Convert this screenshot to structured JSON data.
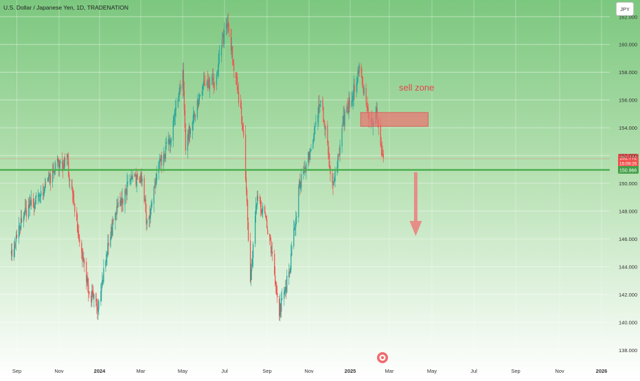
{
  "header": {
    "title": "U.S. Dollar / Japanese Yen, 1D, TRADENATION",
    "currency_button": "JPY"
  },
  "price_labels": {
    "current_price": "151.772",
    "countdown": "15:09:25",
    "line_price": "150.966"
  },
  "annotation": {
    "sell_zone_text": "sell zone"
  },
  "colors": {
    "up": "#26a69a",
    "down": "#ef5350",
    "support_line": "#4caf50",
    "zone_fill": "#ec7372",
    "current_price_tag": "#ef5350",
    "line_price_tag": "#43a047",
    "arrow": "#ec7d7d"
  },
  "chart_data": {
    "type": "candlestick",
    "symbol": "USD/JPY",
    "timeframe": "1D",
    "x_axis_labels": [
      "Sep",
      "Nov",
      "2024",
      "Mar",
      "May",
      "Jul",
      "Sep",
      "Nov",
      "2025",
      "Mar",
      "May",
      "Jul",
      "Sep",
      "Nov",
      "2026"
    ],
    "y_axis_labels": [
      138,
      140,
      142,
      144,
      146,
      148,
      150,
      152,
      154,
      156,
      158,
      160,
      162
    ],
    "ylim": [
      137.1,
      163.2
    ],
    "grid": true,
    "support_line_price": 150.966,
    "current_price": 151.772,
    "sell_zone": {
      "start": "2025-01-12",
      "end": "2025-04-20",
      "price_low": 154.1,
      "price_high": 155.1
    },
    "projection_arrow": {
      "date": "2025-04-02",
      "from_price": 150.8,
      "to_price": 146.2
    },
    "price_path": [
      [
        "2023-08-24",
        144.8
      ],
      [
        "2023-09-10",
        147.8
      ],
      [
        "2023-10-05",
        149.2
      ],
      [
        "2023-10-31",
        151.4
      ],
      [
        "2023-11-13",
        151.6
      ],
      [
        "2023-11-28",
        147.0
      ],
      [
        "2023-12-14",
        142.2
      ],
      [
        "2023-12-28",
        141.0
      ],
      [
        "2024-01-10",
        145.3
      ],
      [
        "2024-01-23",
        147.9
      ],
      [
        "2024-02-13",
        150.3
      ],
      [
        "2024-03-01",
        150.4
      ],
      [
        "2024-03-08",
        146.9
      ],
      [
        "2024-03-26",
        151.4
      ],
      [
        "2024-04-10",
        153.1
      ],
      [
        "2024-04-29",
        158.0
      ],
      [
        "2024-05-03",
        152.8
      ],
      [
        "2024-05-29",
        157.3
      ],
      [
        "2024-06-14",
        157.4
      ],
      [
        "2024-07-01",
        161.5
      ],
      [
        "2024-07-03",
        161.7
      ],
      [
        "2024-07-11",
        158.8
      ],
      [
        "2024-07-26",
        153.8
      ],
      [
        "2024-08-05",
        142.6
      ],
      [
        "2024-08-15",
        149.3
      ],
      [
        "2024-09-02",
        146.2
      ],
      [
        "2024-09-16",
        140.7
      ],
      [
        "2024-10-01",
        143.7
      ],
      [
        "2024-10-15",
        149.8
      ],
      [
        "2024-11-01",
        152.4
      ],
      [
        "2024-11-15",
        156.3
      ],
      [
        "2024-12-03",
        149.5
      ],
      [
        "2024-12-18",
        154.4
      ],
      [
        "2025-01-10",
        158.1
      ],
      [
        "2025-01-27",
        154.4
      ],
      [
        "2025-02-04",
        155.0
      ],
      [
        "2025-02-11",
        152.9
      ],
      [
        "2025-02-14",
        151.8
      ]
    ]
  }
}
